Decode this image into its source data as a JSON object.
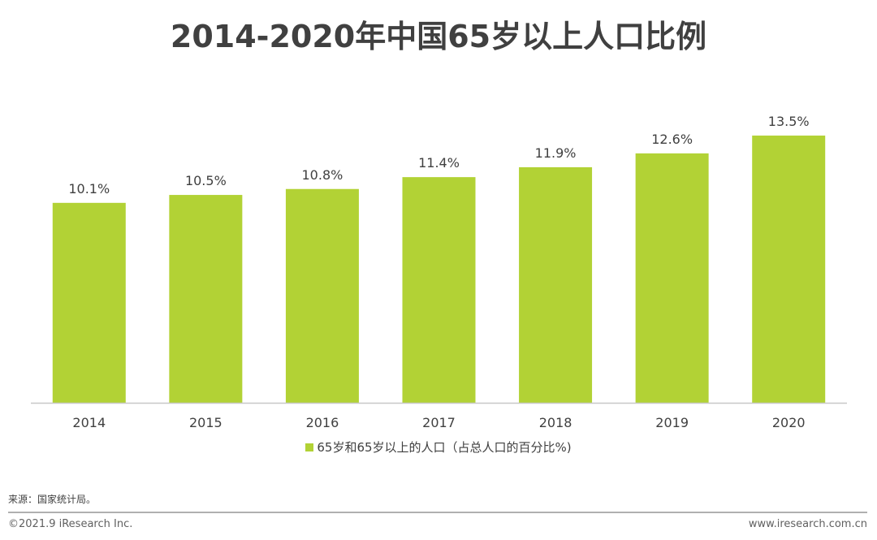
{
  "chart_data": {
    "type": "bar",
    "title": "2014-2020年中国65岁以上人口比例",
    "categories": [
      "2014",
      "2015",
      "2016",
      "2017",
      "2018",
      "2019",
      "2020"
    ],
    "series": [
      {
        "name": "65岁和65岁以上的人口（占总人口的百分比%)",
        "values": [
          10.1,
          10.5,
          10.8,
          11.4,
          11.9,
          12.6,
          13.5
        ]
      }
    ],
    "data_labels": [
      "10.1%",
      "10.5%",
      "10.8%",
      "11.4%",
      "11.9%",
      "12.6%",
      "13.5%"
    ],
    "xlabel": "",
    "ylabel": "",
    "ylim": [
      0,
      16
    ],
    "grid": false,
    "legend": "bottom",
    "color": "#b2d235"
  },
  "footer": {
    "source": "来源：国家统计局。",
    "copyright": "©2021.9 iResearch Inc.",
    "website": "www.iresearch.com.cn"
  }
}
